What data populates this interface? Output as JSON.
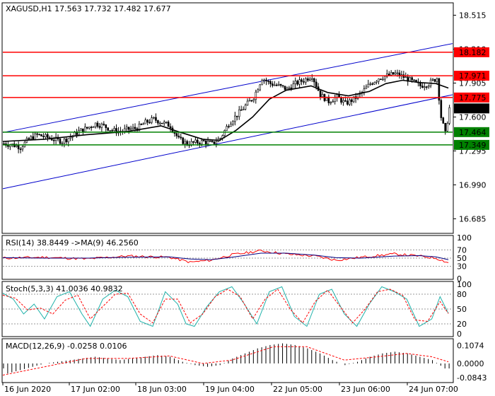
{
  "chart_data": {
    "type": "candlestick",
    "symbol_header": "XAGUSD,H1  17.563 17.732 17.482 17.677",
    "x_tick_labels": [
      "16 Jun 2020",
      "17 Jun 02:00",
      "18 Jun 03:00",
      "19 Jun 04:00",
      "22 Jun 05:00",
      "23 Jun 06:00",
      "24 Jun 07:00"
    ],
    "y_range": [
      16.56,
      18.62
    ],
    "y_tick_labels": [
      18.515,
      18.21,
      17.905,
      17.6,
      17.295,
      16.99,
      16.685
    ],
    "current_price": 17.677,
    "resistance_levels": [
      {
        "label": "18.182",
        "value": 18.182
      },
      {
        "label": "17.971",
        "value": 17.971
      },
      {
        "label": "17.775",
        "value": 17.775
      }
    ],
    "support_levels": [
      {
        "label": "17.464",
        "value": 17.464
      },
      {
        "label": "17.349",
        "value": 17.349
      }
    ],
    "price_path": [
      [
        0,
        17.36
      ],
      [
        4,
        17.35
      ],
      [
        8,
        17.33
      ],
      [
        12,
        17.4
      ],
      [
        16,
        17.44
      ],
      [
        20,
        17.42
      ],
      [
        24,
        17.4
      ],
      [
        28,
        17.38
      ],
      [
        32,
        17.42
      ],
      [
        36,
        17.47
      ],
      [
        40,
        17.5
      ],
      [
        44,
        17.54
      ],
      [
        48,
        17.52
      ],
      [
        52,
        17.48
      ],
      [
        56,
        17.47
      ],
      [
        60,
        17.49
      ],
      [
        64,
        17.5
      ],
      [
        68,
        17.55
      ],
      [
        72,
        17.58
      ],
      [
        76,
        17.55
      ],
      [
        80,
        17.52
      ],
      [
        84,
        17.4
      ],
      [
        88,
        17.36
      ],
      [
        92,
        17.37
      ],
      [
        96,
        17.38
      ],
      [
        100,
        17.36
      ],
      [
        104,
        17.41
      ],
      [
        108,
        17.54
      ],
      [
        112,
        17.62
      ],
      [
        116,
        17.7
      ],
      [
        120,
        17.78
      ],
      [
        124,
        17.95
      ],
      [
        128,
        17.9
      ],
      [
        132,
        17.88
      ],
      [
        136,
        17.85
      ],
      [
        140,
        17.9
      ],
      [
        144,
        17.93
      ],
      [
        148,
        17.97
      ],
      [
        152,
        17.8
      ],
      [
        156,
        17.74
      ],
      [
        160,
        17.78
      ],
      [
        164,
        17.72
      ],
      [
        168,
        17.76
      ],
      [
        172,
        17.82
      ],
      [
        176,
        17.9
      ],
      [
        180,
        17.95
      ],
      [
        184,
        17.97
      ],
      [
        188,
        17.99
      ],
      [
        192,
        17.96
      ],
      [
        196,
        17.92
      ],
      [
        200,
        17.88
      ],
      [
        204,
        17.9
      ],
      [
        208,
        17.95
      ],
      [
        210,
        17.6
      ],
      [
        212,
        17.45
      ],
      [
        214,
        17.68
      ]
    ],
    "ma_path": [
      [
        0,
        17.38
      ],
      [
        20,
        17.4
      ],
      [
        40,
        17.44
      ],
      [
        60,
        17.47
      ],
      [
        76,
        17.52
      ],
      [
        84,
        17.47
      ],
      [
        96,
        17.4
      ],
      [
        104,
        17.39
      ],
      [
        112,
        17.48
      ],
      [
        120,
        17.6
      ],
      [
        128,
        17.76
      ],
      [
        136,
        17.84
      ],
      [
        148,
        17.88
      ],
      [
        156,
        17.82
      ],
      [
        166,
        17.79
      ],
      [
        176,
        17.83
      ],
      [
        184,
        17.9
      ],
      [
        192,
        17.93
      ],
      [
        200,
        17.91
      ],
      [
        208,
        17.9
      ],
      [
        214,
        17.86
      ]
    ],
    "rsi": {
      "label": "RSI(14) 38.8449  ->MA(9) 46.2560",
      "levels": [
        70,
        50,
        30,
        0
      ],
      "range": [
        0,
        100
      ],
      "rsi_path": [
        [
          0,
          50
        ],
        [
          20,
          52
        ],
        [
          40,
          48
        ],
        [
          60,
          55
        ],
        [
          80,
          52
        ],
        [
          90,
          40
        ],
        [
          100,
          45
        ],
        [
          110,
          58
        ],
        [
          124,
          68
        ],
        [
          136,
          60
        ],
        [
          150,
          55
        ],
        [
          160,
          45
        ],
        [
          172,
          52
        ],
        [
          188,
          60
        ],
        [
          200,
          55
        ],
        [
          208,
          50
        ],
        [
          214,
          39
        ]
      ],
      "ma_path": [
        [
          0,
          51
        ],
        [
          20,
          50
        ],
        [
          40,
          50
        ],
        [
          60,
          52
        ],
        [
          80,
          53
        ],
        [
          90,
          48
        ],
        [
          100,
          46
        ],
        [
          110,
          52
        ],
        [
          124,
          62
        ],
        [
          136,
          62
        ],
        [
          150,
          57
        ],
        [
          160,
          51
        ],
        [
          172,
          50
        ],
        [
          188,
          55
        ],
        [
          200,
          56
        ],
        [
          208,
          53
        ],
        [
          214,
          46
        ]
      ]
    },
    "stoch": {
      "label": "Stoch(5,3,3) 41.0036 40.9832",
      "levels": [
        80,
        50,
        20
      ],
      "range": [
        0,
        100
      ],
      "k_path": [
        [
          0,
          82
        ],
        [
          5,
          70
        ],
        [
          10,
          40
        ],
        [
          15,
          60
        ],
        [
          20,
          30
        ],
        [
          26,
          75
        ],
        [
          32,
          85
        ],
        [
          38,
          40
        ],
        [
          42,
          15
        ],
        [
          48,
          70
        ],
        [
          54,
          88
        ],
        [
          60,
          75
        ],
        [
          66,
          25
        ],
        [
          72,
          15
        ],
        [
          78,
          85
        ],
        [
          84,
          60
        ],
        [
          88,
          20
        ],
        [
          92,
          15
        ],
        [
          98,
          55
        ],
        [
          104,
          85
        ],
        [
          110,
          95
        ],
        [
          116,
          60
        ],
        [
          122,
          20
        ],
        [
          128,
          85
        ],
        [
          134,
          95
        ],
        [
          140,
          35
        ],
        [
          146,
          15
        ],
        [
          152,
          80
        ],
        [
          158,
          90
        ],
        [
          164,
          40
        ],
        [
          170,
          15
        ],
        [
          176,
          60
        ],
        [
          182,
          95
        ],
        [
          188,
          85
        ],
        [
          194,
          70
        ],
        [
          200,
          15
        ],
        [
          206,
          30
        ],
        [
          210,
          75
        ],
        [
          214,
          41
        ]
      ],
      "d_path": [
        [
          0,
          78
        ],
        [
          6,
          72
        ],
        [
          12,
          48
        ],
        [
          18,
          52
        ],
        [
          24,
          40
        ],
        [
          30,
          68
        ],
        [
          36,
          78
        ],
        [
          42,
          30
        ],
        [
          48,
          55
        ],
        [
          54,
          80
        ],
        [
          60,
          82
        ],
        [
          66,
          40
        ],
        [
          72,
          22
        ],
        [
          78,
          70
        ],
        [
          84,
          70
        ],
        [
          90,
          22
        ],
        [
          96,
          40
        ],
        [
          102,
          75
        ],
        [
          108,
          90
        ],
        [
          114,
          75
        ],
        [
          120,
          30
        ],
        [
          126,
          70
        ],
        [
          132,
          90
        ],
        [
          138,
          50
        ],
        [
          144,
          22
        ],
        [
          150,
          65
        ],
        [
          156,
          88
        ],
        [
          162,
          55
        ],
        [
          168,
          22
        ],
        [
          174,
          50
        ],
        [
          180,
          85
        ],
        [
          186,
          90
        ],
        [
          192,
          78
        ],
        [
          198,
          28
        ],
        [
          204,
          25
        ],
        [
          210,
          65
        ],
        [
          214,
          41
        ]
      ]
    },
    "macd": {
      "label": "MACD(12,26,9) -0.0258 0.0106",
      "y_tick_labels": [
        0.1074,
        0.0,
        -0.0843
      ],
      "range": [
        -0.11,
        0.135
      ],
      "histogram": [
        [
          2,
          -0.06
        ],
        [
          8,
          -0.04
        ],
        [
          14,
          -0.02
        ],
        [
          20,
          0.0
        ],
        [
          26,
          0.01
        ],
        [
          32,
          0.02
        ],
        [
          38,
          0.03
        ],
        [
          44,
          0.04
        ],
        [
          50,
          0.03
        ],
        [
          56,
          0.02
        ],
        [
          62,
          0.03
        ],
        [
          68,
          0.04
        ],
        [
          74,
          0.05
        ],
        [
          80,
          0.04
        ],
        [
          86,
          0.01
        ],
        [
          92,
          -0.01
        ],
        [
          98,
          -0.02
        ],
        [
          104,
          -0.01
        ],
        [
          110,
          0.03
        ],
        [
          116,
          0.06
        ],
        [
          122,
          0.09
        ],
        [
          128,
          0.11
        ],
        [
          134,
          0.12
        ],
        [
          140,
          0.11
        ],
        [
          146,
          0.09
        ],
        [
          152,
          0.06
        ],
        [
          158,
          0.02
        ],
        [
          164,
          -0.01
        ],
        [
          170,
          0.01
        ],
        [
          176,
          0.04
        ],
        [
          182,
          0.06
        ],
        [
          188,
          0.07
        ],
        [
          194,
          0.06
        ],
        [
          200,
          0.04
        ],
        [
          206,
          0.02
        ],
        [
          212,
          -0.03
        ]
      ],
      "signal_path": [
        [
          0,
          -0.07
        ],
        [
          20,
          -0.02
        ],
        [
          40,
          0.03
        ],
        [
          60,
          0.03
        ],
        [
          80,
          0.045
        ],
        [
          96,
          0.0
        ],
        [
          110,
          0.02
        ],
        [
          130,
          0.1
        ],
        [
          146,
          0.1
        ],
        [
          164,
          0.02
        ],
        [
          180,
          0.04
        ],
        [
          194,
          0.06
        ],
        [
          206,
          0.04
        ],
        [
          214,
          0.01
        ]
      ]
    },
    "colors": {
      "resistance": "#ff0000",
      "support": "#008000",
      "channel": "#0000cc",
      "candle_bull": "#ffffff",
      "candle_bear": "#000000",
      "ma": "#000000",
      "rsi_line": "#ff0000",
      "rsi_ma": "#000080",
      "stoch_k": "#20b2aa",
      "stoch_d": "#ff0000",
      "macd_hist": "#000000",
      "macd_signal": "#ff0000",
      "price_box": "#000000"
    }
  }
}
